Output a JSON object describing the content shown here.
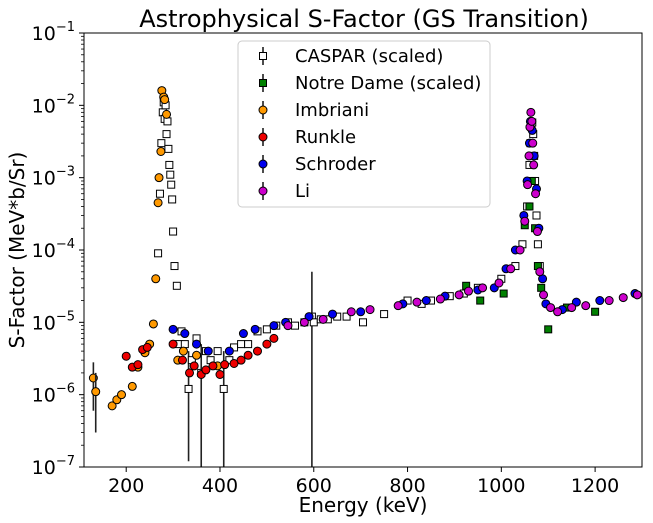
{
  "chart_data": {
    "type": "scatter",
    "title": "Astrophysical S-Factor (GS Transition)",
    "xlabel": "Energy (keV)",
    "ylabel": "S-Factor (MeV*b/Sr)",
    "xlim": [
      110,
      1300
    ],
    "ylim": [
      1e-07,
      0.1
    ],
    "yscale": "log",
    "grid": false,
    "legend_position": "top-center",
    "x_ticks": [
      200,
      400,
      600,
      800,
      1000,
      1200
    ],
    "x_tick_labels": [
      "200",
      "400",
      "600",
      "800",
      "1000",
      "1200"
    ],
    "y_ticks": [
      1e-07,
      1e-06,
      1e-05,
      0.0001,
      0.001,
      0.01,
      0.1
    ],
    "y_tick_labels": [
      {
        "base": "10",
        "exp": "−7"
      },
      {
        "base": "10",
        "exp": "−6"
      },
      {
        "base": "10",
        "exp": "−5"
      },
      {
        "base": "10",
        "exp": "−4"
      },
      {
        "base": "10",
        "exp": "−3"
      },
      {
        "base": "10",
        "exp": "−2"
      },
      {
        "base": "10",
        "exp": "−1"
      }
    ],
    "series": [
      {
        "name": "CASPAR (scaled)",
        "marker": "square",
        "color": "#ffffff",
        "points": [
          {
            "x": 268,
            "y": 9e-05
          },
          {
            "x": 272,
            "y": 0.0006
          },
          {
            "x": 275,
            "y": 0.003
          },
          {
            "x": 278,
            "y": 0.008
          },
          {
            "x": 280,
            "y": 0.011
          },
          {
            "x": 282,
            "y": 0.0065
          },
          {
            "x": 284,
            "y": 0.01
          },
          {
            "x": 286,
            "y": 0.004
          },
          {
            "x": 288,
            "y": 0.006
          },
          {
            "x": 290,
            "y": 0.0025
          },
          {
            "x": 292,
            "y": 0.0015
          },
          {
            "x": 294,
            "y": 0.0011
          },
          {
            "x": 296,
            "y": 0.0008
          },
          {
            "x": 298,
            "y": 0.0005
          },
          {
            "x": 300,
            "y": 0.00018
          },
          {
            "x": 303,
            "y": 6e-05
          },
          {
            "x": 308,
            "y": 3.2e-05
          },
          {
            "x": 312,
            "y": 5e-06
          },
          {
            "x": 318,
            "y": 7.5e-06
          },
          {
            "x": 325,
            "y": 5e-06
          },
          {
            "x": 333,
            "y": 1.2e-06,
            "err_low": 1.2e-07,
            "err_high": 4e-06
          },
          {
            "x": 340,
            "y": 3e-06
          },
          {
            "x": 350,
            "y": 6e-06
          },
          {
            "x": 360,
            "y": 2e-06,
            "err_low": 1e-07,
            "err_high": 5e-06
          },
          {
            "x": 370,
            "y": 4e-06
          },
          {
            "x": 380,
            "y": 3e-06
          },
          {
            "x": 395,
            "y": 4e-06
          },
          {
            "x": 408,
            "y": 1.2e-06,
            "err_low": 1e-07,
            "err_high": 4e-06
          },
          {
            "x": 420,
            "y": 3e-06
          },
          {
            "x": 430,
            "y": 4.5e-06
          },
          {
            "x": 445,
            "y": 5e-06
          },
          {
            "x": 460,
            "y": 5e-06
          },
          {
            "x": 480,
            "y": 7.5e-06
          },
          {
            "x": 500,
            "y": 8e-06
          },
          {
            "x": 520,
            "y": 9e-06
          },
          {
            "x": 545,
            "y": 1e-05
          },
          {
            "x": 560,
            "y": 9e-06
          },
          {
            "x": 580,
            "y": 1e-05
          },
          {
            "x": 596,
            "y": 1.2e-05,
            "err_low": 1e-07,
            "err_high": 5e-05
          },
          {
            "x": 600,
            "y": 1e-05
          },
          {
            "x": 615,
            "y": 1.1e-05
          },
          {
            "x": 630,
            "y": 1.1e-05
          },
          {
            "x": 650,
            "y": 1.2e-05
          },
          {
            "x": 670,
            "y": 1.2e-05
          },
          {
            "x": 705,
            "y": 1e-05
          },
          {
            "x": 750,
            "y": 1.3e-05
          },
          {
            "x": 800,
            "y": 2e-05
          },
          {
            "x": 830,
            "y": 1.8e-05
          },
          {
            "x": 850,
            "y": 2e-05
          },
          {
            "x": 890,
            "y": 2.3e-05
          },
          {
            "x": 920,
            "y": 2.5e-05
          },
          {
            "x": 950,
            "y": 3e-05
          },
          {
            "x": 1000,
            "y": 4e-05
          },
          {
            "x": 1030,
            "y": 6e-05
          },
          {
            "x": 1045,
            "y": 0.00012
          },
          {
            "x": 1055,
            "y": 0.0004
          },
          {
            "x": 1060,
            "y": 0.0015
          },
          {
            "x": 1062,
            "y": 0.003
          },
          {
            "x": 1064,
            "y": 0.005
          },
          {
            "x": 1066,
            "y": 0.0058
          },
          {
            "x": 1068,
            "y": 0.004
          },
          {
            "x": 1070,
            "y": 0.002
          },
          {
            "x": 1072,
            "y": 0.0009
          },
          {
            "x": 1075,
            "y": 0.0003
          },
          {
            "x": 1078,
            "y": 0.00012
          },
          {
            "x": 1082,
            "y": 6e-05
          }
        ]
      },
      {
        "name": "Notre Dame (scaled)",
        "marker": "square",
        "color": "#008000",
        "points": [
          {
            "x": 925,
            "y": 3.2e-05
          },
          {
            "x": 955,
            "y": 2e-05
          },
          {
            "x": 1005,
            "y": 2.5e-05
          },
          {
            "x": 1050,
            "y": 0.00022
          },
          {
            "x": 1060,
            "y": 0.0004
          },
          {
            "x": 1065,
            "y": 0.0009
          },
          {
            "x": 1072,
            "y": 0.0002
          },
          {
            "x": 1078,
            "y": 6e-05
          },
          {
            "x": 1085,
            "y": 3e-05
          },
          {
            "x": 1100,
            "y": 8e-06
          },
          {
            "x": 1140,
            "y": 1.6e-05
          },
          {
            "x": 1200,
            "y": 1.4e-05
          }
        ]
      },
      {
        "name": "Imbriani",
        "marker": "circle",
        "color": "#ff9900",
        "points": [
          {
            "x": 130,
            "y": 1.7e-06,
            "err_low": 6e-07,
            "err_high": 2.8e-06
          },
          {
            "x": 135,
            "y": 1.1e-06,
            "err_low": 3e-07,
            "err_high": 2e-06
          },
          {
            "x": 170,
            "y": 7e-07
          },
          {
            "x": 180,
            "y": 8.5e-07
          },
          {
            "x": 190,
            "y": 1e-06
          },
          {
            "x": 213,
            "y": 1.3e-06
          },
          {
            "x": 225,
            "y": 2.4e-06
          },
          {
            "x": 240,
            "y": 3.8e-06
          },
          {
            "x": 250,
            "y": 5e-06
          },
          {
            "x": 258,
            "y": 9.5e-06
          },
          {
            "x": 263,
            "y": 4e-05
          },
          {
            "x": 268,
            "y": 0.00045
          },
          {
            "x": 270,
            "y": 0.001
          },
          {
            "x": 274,
            "y": 0.0023
          },
          {
            "x": 276,
            "y": 0.016
          },
          {
            "x": 280,
            "y": 0.013
          },
          {
            "x": 282,
            "y": 0.012
          },
          {
            "x": 286,
            "y": 0.0075
          },
          {
            "x": 310,
            "y": 3e-06
          },
          {
            "x": 322,
            "y": 4e-06
          },
          {
            "x": 350,
            "y": 3.5e-06
          },
          {
            "x": 395,
            "y": 2.5e-06
          }
        ]
      },
      {
        "name": "Runkle",
        "marker": "circle",
        "color": "#ee0000",
        "points": [
          {
            "x": 200,
            "y": 3.4e-06
          },
          {
            "x": 213,
            "y": 2.4e-06
          },
          {
            "x": 225,
            "y": 2.6e-06
          },
          {
            "x": 235,
            "y": 4.2e-06
          },
          {
            "x": 245,
            "y": 4.5e-06
          },
          {
            "x": 300,
            "y": 5e-06
          },
          {
            "x": 320,
            "y": 3e-06
          },
          {
            "x": 335,
            "y": 2e-06
          },
          {
            "x": 345,
            "y": 2.5e-06
          },
          {
            "x": 360,
            "y": 1.9e-06
          },
          {
            "x": 370,
            "y": 2.2e-06
          },
          {
            "x": 385,
            "y": 2.5e-06
          },
          {
            "x": 400,
            "y": 1.9e-06
          },
          {
            "x": 410,
            "y": 2.6e-06
          },
          {
            "x": 430,
            "y": 2.7e-06
          },
          {
            "x": 445,
            "y": 3e-06
          },
          {
            "x": 460,
            "y": 3.5e-06
          },
          {
            "x": 480,
            "y": 4e-06
          },
          {
            "x": 500,
            "y": 5e-06
          },
          {
            "x": 515,
            "y": 6e-06
          }
        ]
      },
      {
        "name": "Schroder",
        "marker": "circle",
        "color": "#0000ee",
        "points": [
          {
            "x": 300,
            "y": 8e-06
          },
          {
            "x": 325,
            "y": 7e-06
          },
          {
            "x": 350,
            "y": 5e-06
          },
          {
            "x": 375,
            "y": 4e-06
          },
          {
            "x": 420,
            "y": 4e-06
          },
          {
            "x": 450,
            "y": 7e-06
          },
          {
            "x": 475,
            "y": 8e-06
          },
          {
            "x": 515,
            "y": 9e-06
          },
          {
            "x": 540,
            "y": 1e-05
          },
          {
            "x": 590,
            "y": 1.2e-05
          },
          {
            "x": 640,
            "y": 1.3e-05
          },
          {
            "x": 700,
            "y": 1.4e-05
          },
          {
            "x": 790,
            "y": 1.8e-05
          },
          {
            "x": 840,
            "y": 2e-05
          },
          {
            "x": 880,
            "y": 2.3e-05
          },
          {
            "x": 950,
            "y": 2.8e-05
          },
          {
            "x": 985,
            "y": 3e-05
          },
          {
            "x": 1010,
            "y": 5.5e-05
          },
          {
            "x": 1030,
            "y": 0.0001
          },
          {
            "x": 1048,
            "y": 0.0003
          },
          {
            "x": 1055,
            "y": 0.0009
          },
          {
            "x": 1060,
            "y": 0.003
          },
          {
            "x": 1062,
            "y": 0.006
          },
          {
            "x": 1066,
            "y": 0.0045
          },
          {
            "x": 1070,
            "y": 0.002
          },
          {
            "x": 1075,
            "y": 0.0007
          },
          {
            "x": 1080,
            "y": 0.0002
          },
          {
            "x": 1088,
            "y": 4e-05
          },
          {
            "x": 1095,
            "y": 1.8e-05
          },
          {
            "x": 1130,
            "y": 1.5e-05
          },
          {
            "x": 1160,
            "y": 1.9e-05
          },
          {
            "x": 1210,
            "y": 2e-05
          },
          {
            "x": 1285,
            "y": 2.5e-05
          }
        ]
      },
      {
        "name": "Li",
        "marker": "circle",
        "color": "#cc00cc",
        "points": [
          {
            "x": 545,
            "y": 9e-06
          },
          {
            "x": 580,
            "y": 1e-05
          },
          {
            "x": 620,
            "y": 1.1e-05
          },
          {
            "x": 680,
            "y": 1.4e-05
          },
          {
            "x": 720,
            "y": 1.5e-05
          },
          {
            "x": 780,
            "y": 1.7e-05
          },
          {
            "x": 820,
            "y": 1.9e-05
          },
          {
            "x": 870,
            "y": 2.1e-05
          },
          {
            "x": 910,
            "y": 2.4e-05
          },
          {
            "x": 930,
            "y": 2.7e-05
          },
          {
            "x": 960,
            "y": 3e-05
          },
          {
            "x": 995,
            "y": 3.5e-05
          },
          {
            "x": 1020,
            "y": 5.5e-05
          },
          {
            "x": 1040,
            "y": 0.0001
          },
          {
            "x": 1050,
            "y": 0.00025
          },
          {
            "x": 1056,
            "y": 0.0008
          },
          {
            "x": 1059,
            "y": 0.002
          },
          {
            "x": 1061,
            "y": 0.005
          },
          {
            "x": 1063,
            "y": 0.008
          },
          {
            "x": 1065,
            "y": 0.006
          },
          {
            "x": 1067,
            "y": 0.003
          },
          {
            "x": 1069,
            "y": 0.0015
          },
          {
            "x": 1073,
            "y": 0.0006
          },
          {
            "x": 1077,
            "y": 0.00018
          },
          {
            "x": 1082,
            "y": 5e-05
          },
          {
            "x": 1090,
            "y": 2.4e-05
          },
          {
            "x": 1105,
            "y": 1.6e-05
          },
          {
            "x": 1120,
            "y": 1.4e-05
          },
          {
            "x": 1150,
            "y": 1.6e-05
          },
          {
            "x": 1180,
            "y": 1.7e-05
          },
          {
            "x": 1230,
            "y": 2e-05
          },
          {
            "x": 1260,
            "y": 2.2e-05
          },
          {
            "x": 1290,
            "y": 2.4e-05
          }
        ]
      }
    ]
  }
}
